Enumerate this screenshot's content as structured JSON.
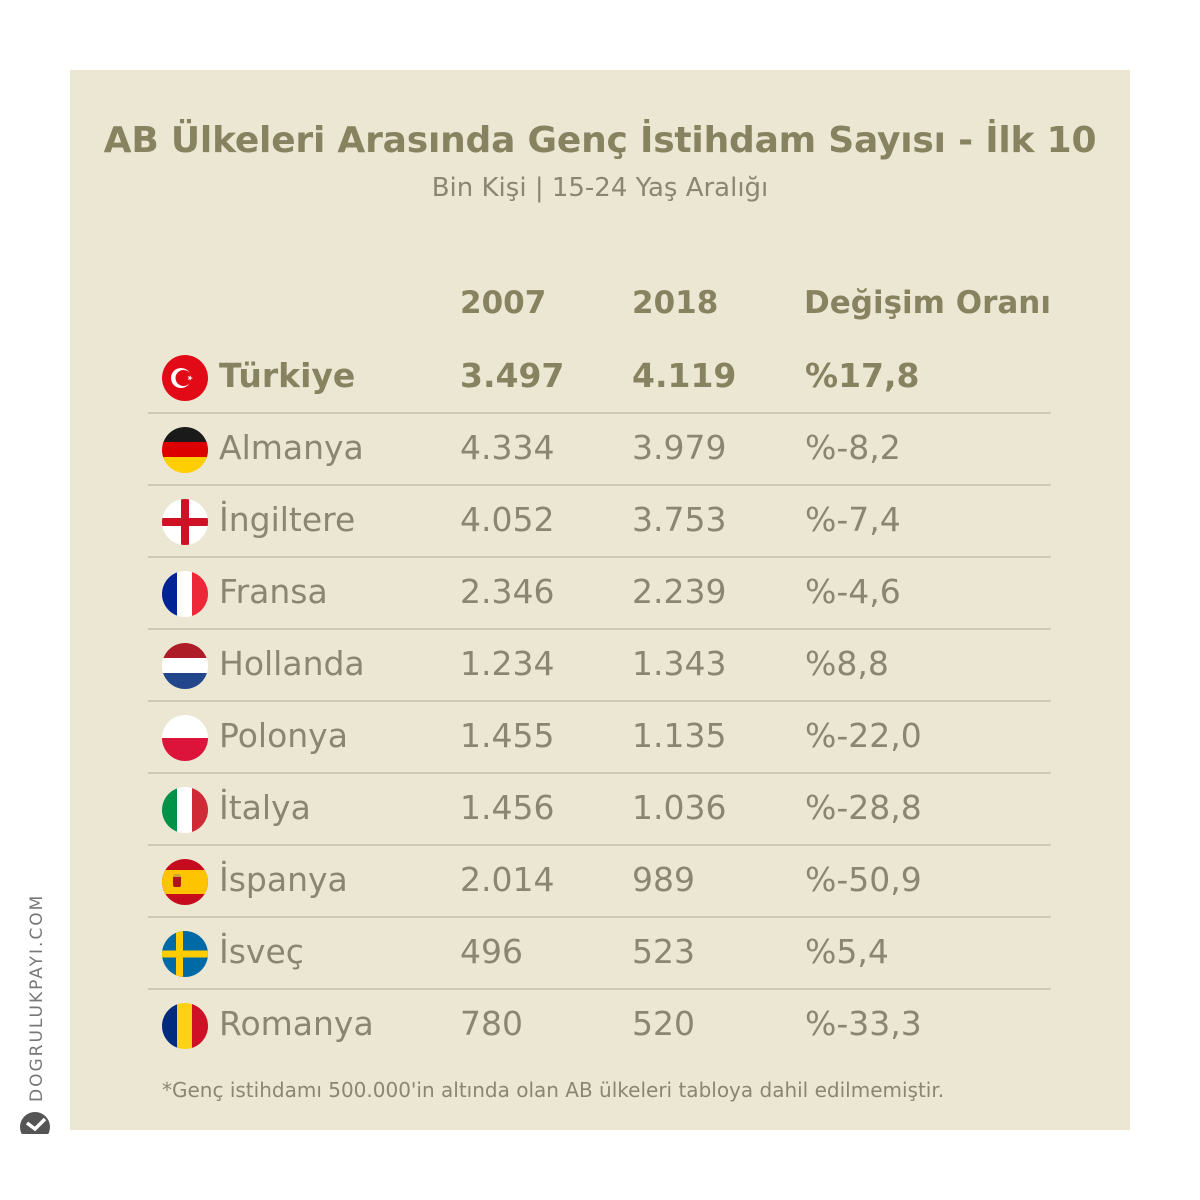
{
  "chart_data": {
    "type": "table",
    "title": "AB Ülkeleri Arasında Genç İstihdam Sayısı - İlk 10",
    "subtitle": "Bin Kişi | 15-24 Yaş Aralığı",
    "columns": [
      "2007",
      "2018",
      "Değişim Oranı"
    ],
    "rows": [
      {
        "country": "Türkiye",
        "flag": "turkey-flag-icon",
        "v2007": "3.497",
        "v2018": "4.119",
        "change": "%17,8",
        "highlight": true
      },
      {
        "country": "Almanya",
        "flag": "germany-flag-icon",
        "v2007": "4.334",
        "v2018": "3.979",
        "change": "%-8,2"
      },
      {
        "country": "İngiltere",
        "flag": "england-flag-icon",
        "v2007": "4.052",
        "v2018": "3.753",
        "change": "%-7,4"
      },
      {
        "country": "Fransa",
        "flag": "france-flag-icon",
        "v2007": "2.346",
        "v2018": "2.239",
        "change": "%-4,6"
      },
      {
        "country": "Hollanda",
        "flag": "netherlands-flag-icon",
        "v2007": "1.234",
        "v2018": "1.343",
        "change": "%8,8"
      },
      {
        "country": "Polonya",
        "flag": "poland-flag-icon",
        "v2007": "1.455",
        "v2018": "1.135",
        "change": "%-22,0"
      },
      {
        "country": "İtalya",
        "flag": "italy-flag-icon",
        "v2007": "1.456",
        "v2018": "1.036",
        "change": "%-28,8"
      },
      {
        "country": "İspanya",
        "flag": "spain-flag-icon",
        "v2007": "2.014",
        "v2018": "989",
        "change": "%-50,9"
      },
      {
        "country": "İsveç",
        "flag": "sweden-flag-icon",
        "v2007": "496",
        "v2018": "523",
        "change": "%5,4"
      },
      {
        "country": "Romanya",
        "flag": "romania-flag-icon",
        "v2007": "780",
        "v2018": "520",
        "change": "%-33,3"
      }
    ],
    "footnote": "*Genç istihdamı 500.000'in altında olan AB ülkeleri tabloya dahil edilmemiştir."
  },
  "brand": "DOGRULUKPAYI.COM",
  "colors": {
    "background": "#ece7d3",
    "text_bold": "#878260",
    "text": "#8a8672",
    "divider": "#cfcab5"
  }
}
